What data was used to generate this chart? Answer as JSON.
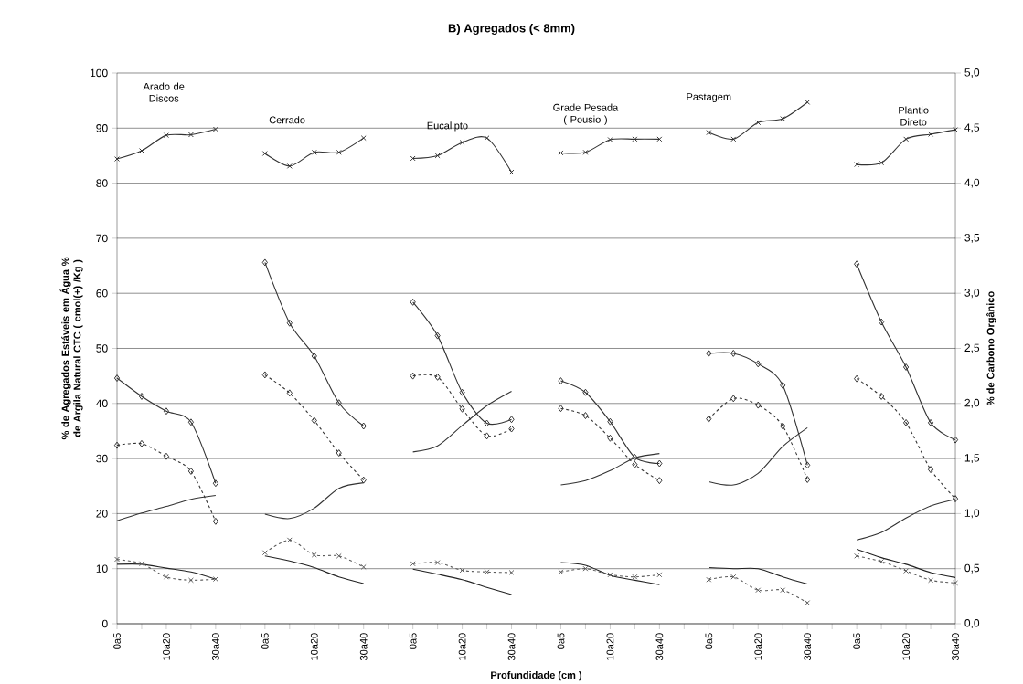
{
  "chart_data": {
    "type": "line",
    "title": "B) Agregados  (< 8mm)",
    "xlabel": "Profundidade (cm )",
    "ylabel": "% de Agregados Estáveis em Água % de Argila Natural CTC ( cmol(+) /Kg )",
    "y2label": "% de Carbono Orgânico",
    "categories": [
      "0a5",
      null,
      "10a20",
      null,
      "30a40",
      null,
      "0a5",
      null,
      "10a20",
      null,
      "30a40",
      null,
      "0a5",
      null,
      "10a20",
      null,
      "30a40",
      null,
      "0a5",
      null,
      "10a20",
      null,
      "30a40",
      null,
      "0a5",
      null,
      "10a20",
      null,
      "30a40",
      null,
      "0a5",
      null,
      "10a20",
      null,
      "30a40"
    ],
    "ylim": [
      0,
      100
    ],
    "yticks": [
      0,
      10,
      20,
      30,
      40,
      50,
      60,
      70,
      80,
      90,
      100
    ],
    "y2lim": [
      0,
      5
    ],
    "y2ticks": [
      {
        "value": 0,
        "label": "0,0"
      },
      {
        "value": 0.5,
        "label": "0,5"
      },
      {
        "value": 1,
        "label": "1,0"
      },
      {
        "value": 1.5,
        "label": "1,5"
      },
      {
        "value": 2,
        "label": "2,0"
      },
      {
        "value": 2.5,
        "label": "2,5"
      },
      {
        "value": 3,
        "label": "3,0"
      },
      {
        "value": 3.5,
        "label": "3,5"
      },
      {
        "value": 4,
        "label": "4,0"
      },
      {
        "value": 4.5,
        "label": "4,5"
      },
      {
        "value": 5,
        "label": "5,0"
      }
    ],
    "grid": "y",
    "annotations": [
      "Arado de Discos",
      "Cerrado",
      "Eucalipto",
      "Grade Pesada ( Pousio )",
      "Pastagem",
      "Plantio Direto"
    ],
    "series": [
      {
        "color": "#333333",
        "marker": "cross",
        "line_style": "solid",
        "values": [
          84.4,
          85.9,
          88.7,
          88.8,
          89.8,
          null,
          85.4,
          83.1,
          85.6,
          85.6,
          88.2,
          null,
          84.5,
          85.0,
          87.4,
          88.2,
          82.0,
          null,
          85.5,
          85.6,
          87.9,
          88.0,
          88.0,
          null,
          89.2,
          88.0,
          91.0,
          91.7,
          94.7,
          null,
          83.4,
          83.7,
          88.0,
          88.9,
          89.7
        ]
      },
      {
        "color": "#333333",
        "marker": "diamond",
        "line_style": "solid",
        "values": [
          44.6,
          41.3,
          38.6,
          36.6,
          25.5,
          null,
          65.6,
          54.6,
          48.6,
          40.1,
          35.9,
          null,
          58.4,
          52.3,
          42.0,
          36.4,
          37.1,
          null,
          44.1,
          42.0,
          36.7,
          30.2,
          29.1,
          null,
          49.1,
          49.1,
          47.2,
          43.3,
          28.8,
          null,
          65.3,
          54.8,
          46.6,
          36.5,
          33.4
        ]
      },
      {
        "color": "#333333",
        "marker": "diamond",
        "line_style": "dashed",
        "values": [
          32.4,
          32.7,
          30.4,
          27.7,
          18.6,
          null,
          45.2,
          41.9,
          36.9,
          31.0,
          26.1,
          null,
          45.0,
          44.8,
          39.0,
          34.1,
          35.4,
          null,
          39.1,
          37.8,
          33.7,
          28.9,
          26.0,
          null,
          37.2,
          40.9,
          39.7,
          35.9,
          26.2,
          null,
          44.5,
          41.3,
          36.5,
          28.0,
          22.7
        ]
      },
      {
        "color": "#333333",
        "marker": "none",
        "line_style": "solid",
        "values": [
          18.7,
          20.1,
          21.3,
          22.6,
          23.3,
          null,
          19.9,
          19.1,
          21.0,
          24.6,
          25.6,
          null,
          31.2,
          32.3,
          36.0,
          39.6,
          42.2,
          null,
          25.2,
          26.0,
          27.8,
          30.1,
          30.9,
          null,
          25.8,
          25.2,
          27.3,
          32.2,
          35.6,
          null,
          15.2,
          16.6,
          19.2,
          21.4,
          22.6
        ]
      },
      {
        "color": "#222222",
        "marker": "none",
        "line_style": "solid",
        "values": [
          10.8,
          10.8,
          10.1,
          9.4,
          8.1,
          null,
          12.3,
          11.4,
          10.2,
          8.5,
          7.3,
          null,
          9.9,
          9.0,
          8.0,
          6.6,
          5.3,
          null,
          11.1,
          10.6,
          8.8,
          7.9,
          7.1,
          null,
          10.2,
          10.0,
          10.0,
          8.5,
          7.2,
          null,
          13.5,
          12.0,
          10.8,
          9.3,
          8.4
        ]
      },
      {
        "color": "#5a5a5a",
        "marker": "cross",
        "line_style": "dashed",
        "values": [
          11.7,
          10.9,
          8.5,
          7.9,
          8.1,
          null,
          12.9,
          15.2,
          12.5,
          12.3,
          10.3,
          null,
          10.9,
          11.1,
          9.7,
          9.4,
          9.3,
          null,
          9.4,
          10.0,
          8.9,
          8.5,
          8.9,
          null,
          8.0,
          8.5,
          6.1,
          6.1,
          3.8,
          null,
          12.3,
          11.3,
          9.6,
          7.9,
          7.4
        ]
      }
    ]
  }
}
